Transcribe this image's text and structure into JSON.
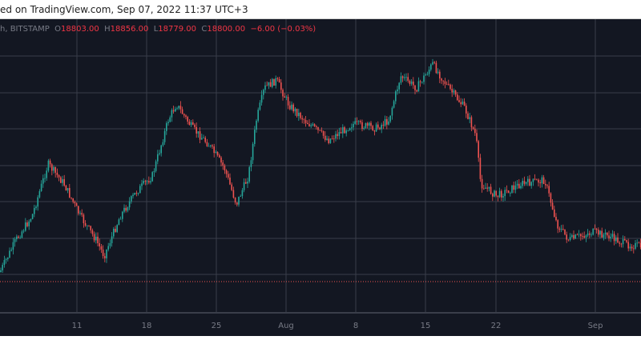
{
  "caption": "ed on TradingView.com, Sep 07, 2022 11:37 UTC+3",
  "legend": {
    "symbol": "h, BITSTAMP",
    "o_label": "O",
    "o": "18803.00",
    "h_label": "H",
    "h": "18856.00",
    "l_label": "L",
    "l": "18779.00",
    "c_label": "C",
    "c": "18800.00",
    "change": "−6.00 (−0.03%)"
  },
  "colors": {
    "background": "#131722",
    "up": "#26a69a",
    "down": "#ef5350",
    "grid": "#3a3e4a",
    "text": "#787b86"
  },
  "chart_data": {
    "type": "candlestick",
    "x_ticks": [
      "11",
      "18",
      "25",
      "Aug",
      "8",
      "15",
      "22",
      "Sep"
    ],
    "grid": true
  }
}
